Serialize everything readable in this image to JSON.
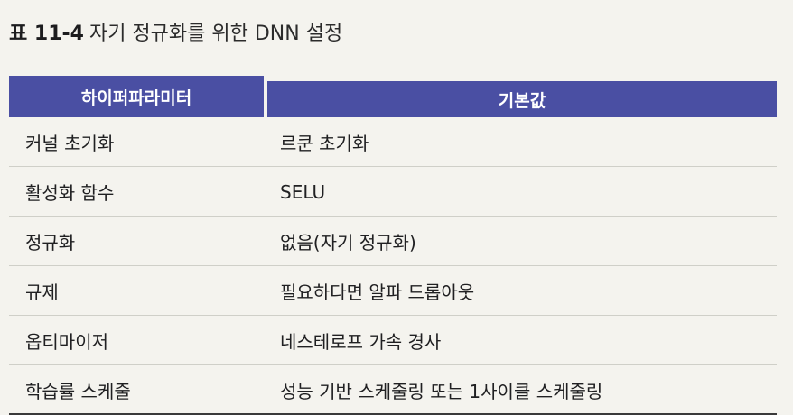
{
  "caption": {
    "label": "표 11-4",
    "title": "자기 정규화를 위한 DNN 설정"
  },
  "table": {
    "headers": [
      "하이퍼파라미터",
      "기본값"
    ],
    "rows": [
      [
        "커널 초기화",
        "르쿤 초기화"
      ],
      [
        "활성화 함수",
        "SELU"
      ],
      [
        "정규화",
        "없음(자기 정규화)"
      ],
      [
        "규제",
        "필요하다면 알파 드롭아웃"
      ],
      [
        "옵티마이저",
        "네스테로프 가속 경사"
      ],
      [
        "학습률 스케줄",
        "성능 기반 스케줄링 또는 1사이클 스케줄링"
      ]
    ]
  }
}
